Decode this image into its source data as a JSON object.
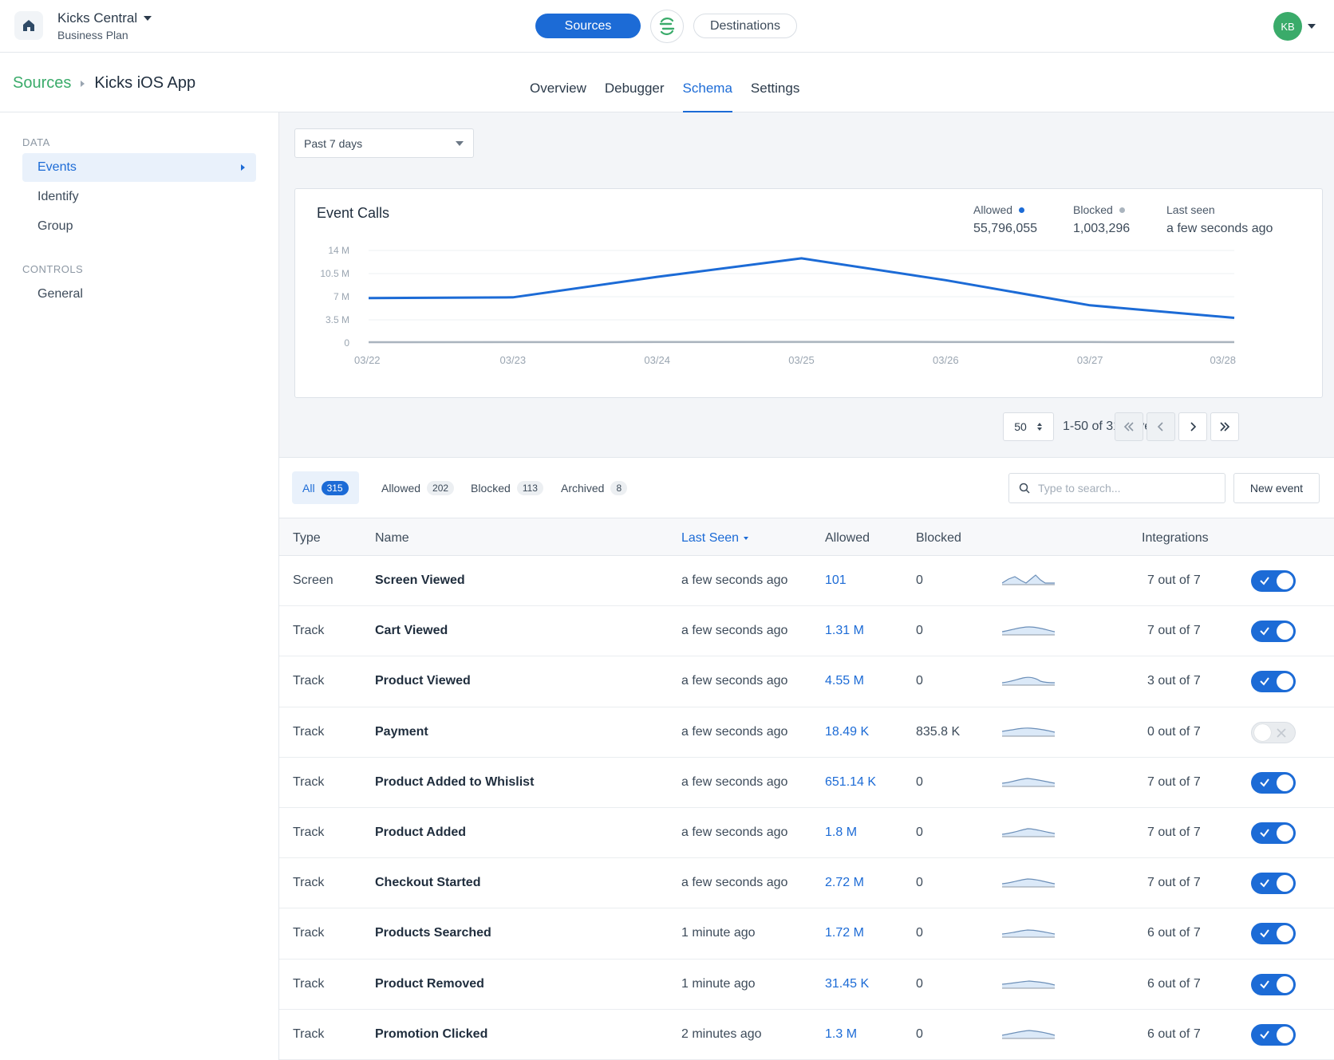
{
  "workspace": {
    "name": "Kicks Central",
    "plan": "Business Plan"
  },
  "topnav": {
    "sources": "Sources",
    "destinations": "Destinations"
  },
  "user": {
    "initials": "KB"
  },
  "breadcrumb": {
    "parent": "Sources",
    "current": "Kicks iOS App"
  },
  "tabs": [
    "Overview",
    "Debugger",
    "Schema",
    "Settings"
  ],
  "active_tab": "Schema",
  "sidebar": {
    "sections": [
      {
        "title": "DATA",
        "items": [
          "Events",
          "Identify",
          "Group"
        ]
      },
      {
        "title": "CONTROLS",
        "items": [
          "General"
        ]
      }
    ],
    "active_item": "Events"
  },
  "date_range": "Past 7 days",
  "chart": {
    "title": "Event Calls",
    "stats": {
      "allowed_label": "Allowed",
      "allowed_value": "55,796,055",
      "blocked_label": "Blocked",
      "blocked_value": "1,003,296",
      "last_seen_label": "Last seen",
      "last_seen_value": "a few seconds ago"
    }
  },
  "chart_data": {
    "type": "line",
    "title": "Event Calls",
    "x": [
      "03/22",
      "03/23",
      "03/24",
      "03/25",
      "03/26",
      "03/27",
      "03/28"
    ],
    "y_ticks": [
      "14 M",
      "10.5 M",
      "7 M",
      "3.5 M",
      "0"
    ],
    "ylim": [
      0,
      14000000
    ],
    "series": [
      {
        "name": "Allowed",
        "color": "#1c6bd6",
        "values": [
          6800000,
          6900000,
          10000000,
          12800000,
          9500000,
          5700000,
          3800000
        ]
      },
      {
        "name": "Blocked",
        "color": "#aab4be",
        "values": [
          120000,
          130000,
          150000,
          170000,
          160000,
          140000,
          130000
        ]
      }
    ],
    "grid": true
  },
  "pagination": {
    "page_size": "50",
    "summary": "1-50 of 315 events"
  },
  "filters": [
    {
      "label": "All",
      "count": "315"
    },
    {
      "label": "Allowed",
      "count": "202"
    },
    {
      "label": "Blocked",
      "count": "113"
    },
    {
      "label": "Archived",
      "count": "8"
    }
  ],
  "search": {
    "placeholder": "Type to search..."
  },
  "new_event_label": "New event",
  "table": {
    "headers": {
      "type": "Type",
      "name": "Name",
      "last_seen": "Last Seen",
      "allowed": "Allowed",
      "blocked": "Blocked",
      "integrations": "Integrations"
    },
    "rows": [
      {
        "type": "Screen",
        "name": "Screen Viewed",
        "last_seen": "a few seconds ago",
        "allowed": "101",
        "blocked": "0",
        "integrations": "7 out of 7",
        "enabled": true
      },
      {
        "type": "Track",
        "name": "Cart Viewed",
        "last_seen": "a few seconds ago",
        "allowed": "1.31 M",
        "blocked": "0",
        "integrations": "7 out of 7",
        "enabled": true
      },
      {
        "type": "Track",
        "name": "Product Viewed",
        "last_seen": "a few seconds ago",
        "allowed": "4.55 M",
        "blocked": "0",
        "integrations": "3 out of 7",
        "enabled": true
      },
      {
        "type": "Track",
        "name": "Payment",
        "last_seen": "a few seconds ago",
        "allowed": "18.49 K",
        "blocked": "835.8 K",
        "integrations": "0 out of 7",
        "enabled": false
      },
      {
        "type": "Track",
        "name": "Product Added to Whislist",
        "last_seen": "a few seconds ago",
        "allowed": "651.14 K",
        "blocked": "0",
        "integrations": "7 out of 7",
        "enabled": true
      },
      {
        "type": "Track",
        "name": "Product Added",
        "last_seen": "a few seconds ago",
        "allowed": "1.8 M",
        "blocked": "0",
        "integrations": "7 out of 7",
        "enabled": true
      },
      {
        "type": "Track",
        "name": "Checkout Started",
        "last_seen": "a few seconds ago",
        "allowed": "2.72 M",
        "blocked": "0",
        "integrations": "7 out of 7",
        "enabled": true
      },
      {
        "type": "Track",
        "name": "Products Searched",
        "last_seen": "1 minute ago",
        "allowed": "1.72 M",
        "blocked": "0",
        "integrations": "6 out of 7",
        "enabled": true
      },
      {
        "type": "Track",
        "name": "Product Removed",
        "last_seen": "1 minute ago",
        "allowed": "31.45 K",
        "blocked": "0",
        "integrations": "6 out of 7",
        "enabled": true
      },
      {
        "type": "Track",
        "name": "Promotion Clicked",
        "last_seen": "2 minutes ago",
        "allowed": "1.3 M",
        "blocked": "0",
        "integrations": "6 out of 7",
        "enabled": true
      }
    ]
  }
}
